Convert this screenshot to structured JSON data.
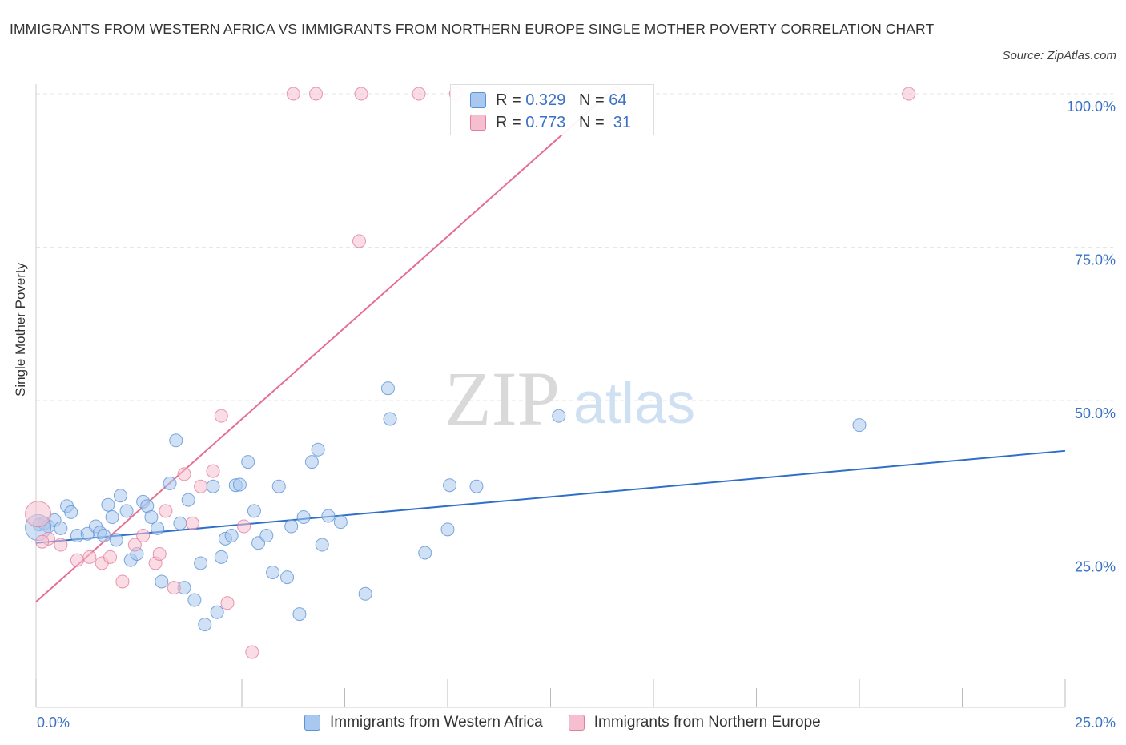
{
  "title": "IMMIGRANTS FROM WESTERN AFRICA VS IMMIGRANTS FROM NORTHERN EUROPE SINGLE MOTHER POVERTY CORRELATION CHART",
  "source": "Source: ZipAtlas.com",
  "watermark": {
    "zip": "ZIP",
    "atlas": "atlas"
  },
  "legend": {
    "rows": [
      {
        "r_label": "R =",
        "r_value": "0.329",
        "n_label": "N =",
        "n_value": "64"
      },
      {
        "r_label": "R =",
        "r_value": "0.773",
        "n_label": "N =",
        "n_value": "31"
      }
    ]
  },
  "colors": {
    "blue_fill": "#a9c8ef",
    "blue_stroke": "#5e92d6",
    "blue_line": "#2f6fc9",
    "pink_fill": "#f5bfd0",
    "pink_stroke": "#e47e9f",
    "pink_line": "#e46f93",
    "grid": "#e6e6e6",
    "tick_label": "#3b72c4"
  },
  "chart_data": {
    "type": "scatter",
    "title": "IMMIGRANTS FROM WESTERN AFRICA VS IMMIGRANTS FROM NORTHERN EUROPE SINGLE MOTHER POVERTY CORRELATION CHART",
    "xlabel": "",
    "ylabel": "Single Mother Poverty",
    "xlim": [
      0,
      25
    ],
    "ylim": [
      0,
      100
    ],
    "x_tick_labels": [
      "0.0%",
      "25.0%"
    ],
    "y_tick_labels": [
      "25.0%",
      "50.0%",
      "75.0%",
      "100.0%"
    ],
    "y_ticks": [
      25,
      50,
      75,
      100
    ],
    "grid": true,
    "legend_position": "top-center",
    "series": [
      {
        "name": "Immigrants from Western Africa",
        "color": "#a9c8ef",
        "points": [
          [
            0.08,
            29.8
          ],
          [
            0.2,
            30.0
          ],
          [
            0.3,
            29.5
          ],
          [
            0.45,
            30.5
          ],
          [
            0.6,
            29.2
          ],
          [
            0.75,
            32.8
          ],
          [
            0.85,
            31.8
          ],
          [
            1.0,
            28.0
          ],
          [
            1.25,
            28.3
          ],
          [
            1.45,
            29.5
          ],
          [
            1.55,
            28.5
          ],
          [
            1.65,
            28.0
          ],
          [
            1.75,
            33.0
          ],
          [
            1.85,
            31.0
          ],
          [
            1.95,
            27.3
          ],
          [
            2.05,
            34.5
          ],
          [
            2.2,
            32.0
          ],
          [
            2.3,
            24.0
          ],
          [
            2.45,
            25.0
          ],
          [
            2.6,
            33.5
          ],
          [
            2.7,
            32.8
          ],
          [
            2.8,
            31.0
          ],
          [
            2.95,
            29.2
          ],
          [
            3.05,
            20.5
          ],
          [
            3.25,
            36.5
          ],
          [
            3.4,
            43.5
          ],
          [
            3.5,
            30.0
          ],
          [
            3.6,
            19.5
          ],
          [
            3.7,
            33.8
          ],
          [
            3.85,
            17.5
          ],
          [
            4.0,
            23.5
          ],
          [
            4.1,
            13.5
          ],
          [
            4.3,
            36.0
          ],
          [
            4.4,
            15.5
          ],
          [
            4.5,
            24.5
          ],
          [
            4.6,
            27.5
          ],
          [
            4.75,
            28.0
          ],
          [
            4.85,
            36.2
          ],
          [
            4.95,
            36.3
          ],
          [
            5.15,
            40.0
          ],
          [
            5.3,
            32.0
          ],
          [
            5.4,
            26.8
          ],
          [
            5.6,
            28.0
          ],
          [
            5.75,
            22.0
          ],
          [
            5.9,
            36.0
          ],
          [
            6.1,
            21.2
          ],
          [
            6.2,
            29.5
          ],
          [
            6.4,
            15.2
          ],
          [
            6.5,
            31.0
          ],
          [
            6.7,
            40.0
          ],
          [
            6.85,
            42.0
          ],
          [
            6.95,
            26.5
          ],
          [
            7.1,
            31.2
          ],
          [
            7.4,
            30.2
          ],
          [
            8.0,
            18.5
          ],
          [
            8.55,
            52.0
          ],
          [
            8.6,
            47.0
          ],
          [
            9.45,
            25.2
          ],
          [
            10.0,
            29.0
          ],
          [
            10.05,
            36.2
          ],
          [
            10.7,
            36.0
          ],
          [
            12.7,
            47.5
          ],
          [
            20.0,
            46.0
          ],
          [
            0.05,
            29.3
          ]
        ],
        "trend": {
          "x": [
            0,
            25
          ],
          "y": [
            26.8,
            41.8
          ]
        }
      },
      {
        "name": "Immigrants from Northern Europe",
        "color": "#f5bfd0",
        "points": [
          [
            0.05,
            31.5
          ],
          [
            0.3,
            27.5
          ],
          [
            0.6,
            26.5
          ],
          [
            1.0,
            24.0
          ],
          [
            1.3,
            24.5
          ],
          [
            1.6,
            23.5
          ],
          [
            1.8,
            24.5
          ],
          [
            2.1,
            20.5
          ],
          [
            2.4,
            26.5
          ],
          [
            2.6,
            28.0
          ],
          [
            2.9,
            23.5
          ],
          [
            3.0,
            25.0
          ],
          [
            3.15,
            32.0
          ],
          [
            3.35,
            19.5
          ],
          [
            3.6,
            38.0
          ],
          [
            3.8,
            30.0
          ],
          [
            4.0,
            36.0
          ],
          [
            4.3,
            38.5
          ],
          [
            4.5,
            47.5
          ],
          [
            4.65,
            17.0
          ],
          [
            5.05,
            29.5
          ],
          [
            5.25,
            9.0
          ],
          [
            6.25,
            100
          ],
          [
            6.8,
            100
          ],
          [
            7.85,
            76.0
          ],
          [
            7.9,
            100
          ],
          [
            9.3,
            100
          ],
          [
            10.2,
            100
          ],
          [
            14.1,
            100
          ],
          [
            21.2,
            100
          ],
          [
            0.15,
            27.0
          ]
        ],
        "trend": {
          "x": [
            0,
            13.9
          ],
          "y": [
            17.2,
            100
          ]
        }
      }
    ]
  }
}
